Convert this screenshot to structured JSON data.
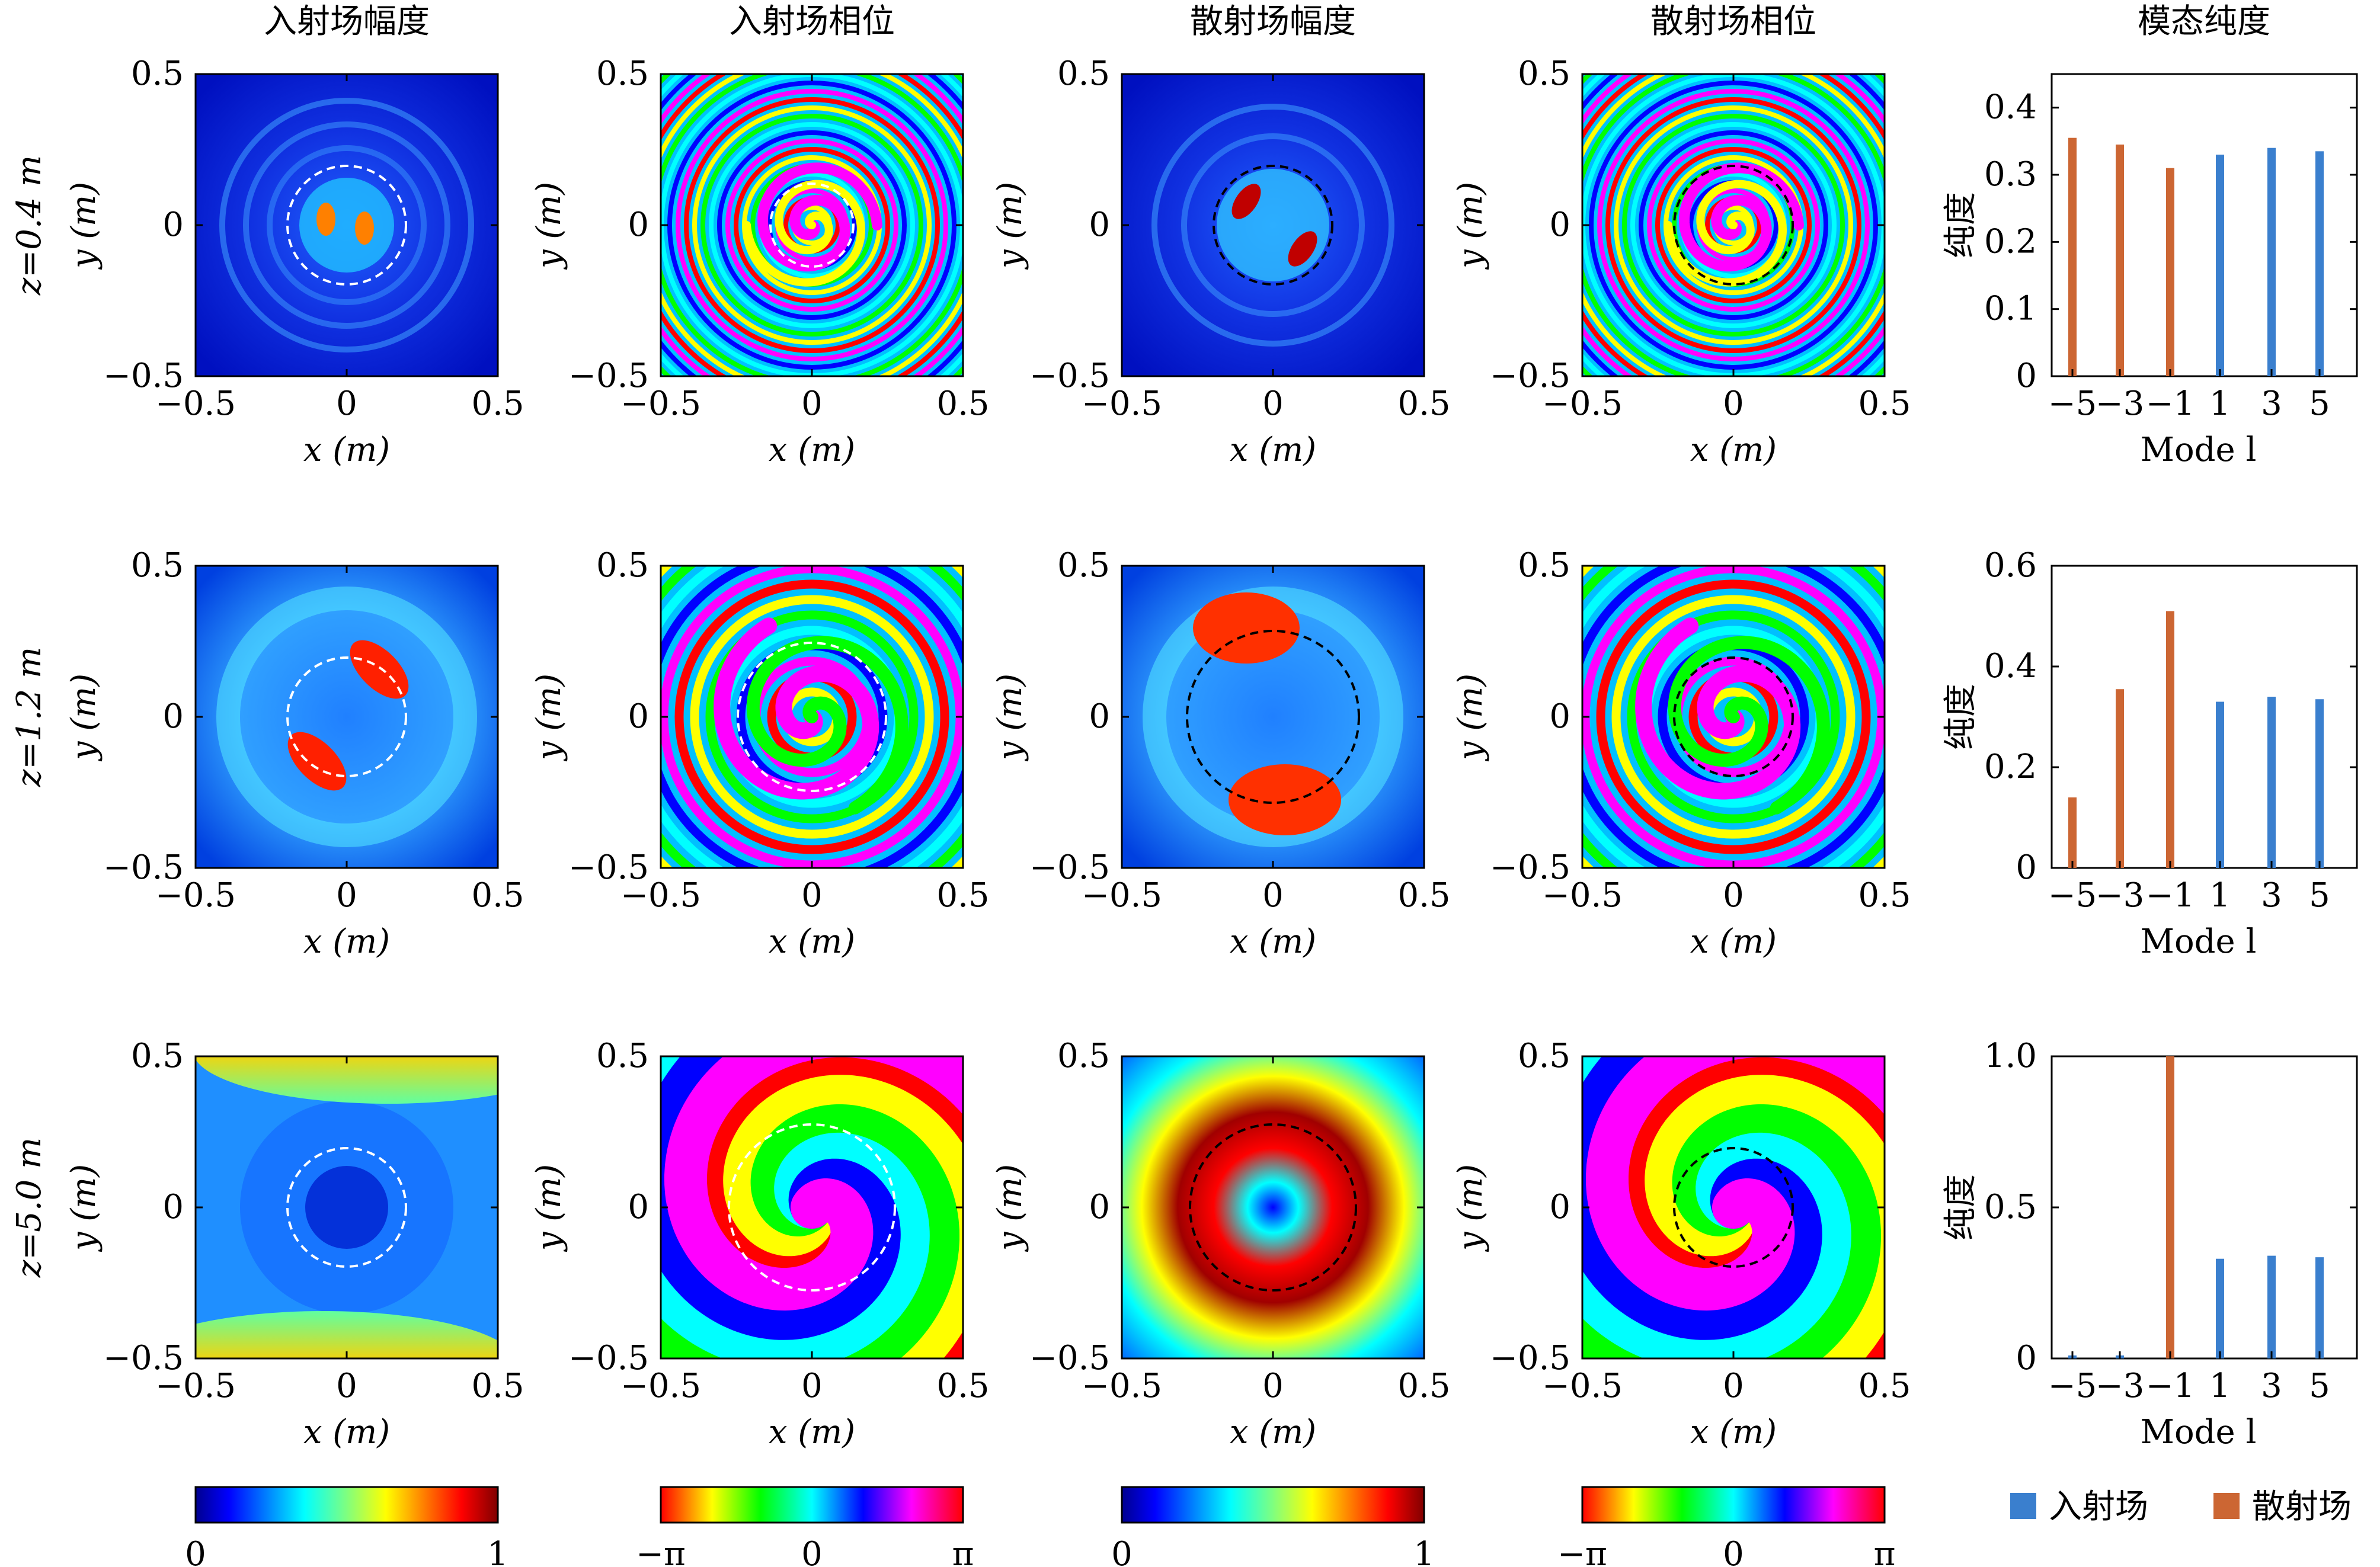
{
  "column_titles": [
    "入射场幅度",
    "入射场相位",
    "散射场幅度",
    "散射场相位",
    "模态纯度"
  ],
  "row_labels": [
    "z=0.4 m",
    "z=1.2 m",
    "z=5.0 m"
  ],
  "axes": {
    "xlabel": "x (m)",
    "ylabel": "y (m)",
    "tick_labels": [
      "−0.5",
      "0",
      "0.5"
    ],
    "bar_xlabel": "Mode l",
    "bar_ylabel": "纯度"
  },
  "colorbars": [
    {
      "min_label": "0",
      "max_label": "1",
      "colormap": "jet"
    },
    {
      "min_label": "−π",
      "mid_label": "0",
      "max_label": "π",
      "colormap": "hsv"
    },
    {
      "min_label": "0",
      "max_label": "1",
      "colormap": "jet"
    },
    {
      "min_label": "−π",
      "mid_label": "0",
      "max_label": "π",
      "colormap": "hsv"
    }
  ],
  "legend": {
    "items": [
      {
        "name": "入射场",
        "color": "#3a7fce"
      },
      {
        "name": "散射场",
        "color": "#cc6633"
      }
    ]
  },
  "chart_data": [
    {
      "type": "bar",
      "row": "z=0.4 m",
      "categories": [
        "-5",
        "-3",
        "-1",
        "1",
        "3",
        "5"
      ],
      "category_labels": [
        "−5",
        "−3",
        "−1",
        "1",
        "3",
        "5"
      ],
      "series": [
        {
          "name": "入射场",
          "values": [
            0.01,
            0.01,
            0.01,
            0.33,
            0.34,
            0.335
          ]
        },
        {
          "name": "散射场",
          "values": [
            0.355,
            0.345,
            0.31,
            0.0,
            0.0,
            0.0
          ]
        }
      ],
      "xlabel": "Mode l",
      "ylabel": "纯度",
      "ylim": [
        0,
        0.45
      ],
      "yticks": [
        0,
        0.1,
        0.2,
        0.3,
        0.4
      ],
      "ytick_labels": [
        "0",
        "0.1",
        "0.2",
        "0.3",
        "0.4"
      ]
    },
    {
      "type": "bar",
      "row": "z=1.2 m",
      "categories": [
        "-5",
        "-3",
        "-1",
        "1",
        "3",
        "5"
      ],
      "category_labels": [
        "−5",
        "−3",
        "−1",
        "1",
        "3",
        "5"
      ],
      "series": [
        {
          "name": "入射场",
          "values": [
            0.01,
            0.01,
            0.01,
            0.33,
            0.34,
            0.335
          ]
        },
        {
          "name": "散射场",
          "values": [
            0.14,
            0.355,
            0.51,
            0.0,
            0.0,
            0.0
          ]
        }
      ],
      "xlabel": "Mode l",
      "ylabel": "纯度",
      "ylim": [
        0,
        0.6
      ],
      "yticks": [
        0,
        0.2,
        0.4,
        0.6
      ],
      "ytick_labels": [
        "0",
        "0.2",
        "0.4",
        "0.6"
      ]
    },
    {
      "type": "bar",
      "row": "z=5.0 m",
      "categories": [
        "-5",
        "-3",
        "-1",
        "1",
        "3",
        "5"
      ],
      "category_labels": [
        "−5",
        "−3",
        "−1",
        "1",
        "3",
        "5"
      ],
      "series": [
        {
          "name": "入射场",
          "values": [
            0.01,
            0.01,
            0.01,
            0.33,
            0.34,
            0.335
          ]
        },
        {
          "name": "散射场",
          "values": [
            0.0,
            0.0,
            1.0,
            0.0,
            0.0,
            0.0
          ]
        }
      ],
      "xlabel": "Mode l",
      "ylabel": "纯度",
      "ylim": [
        0,
        1.0
      ],
      "yticks": [
        0,
        0.5,
        1.0
      ],
      "ytick_labels": [
        "0",
        "0.5",
        "1.0"
      ]
    }
  ]
}
